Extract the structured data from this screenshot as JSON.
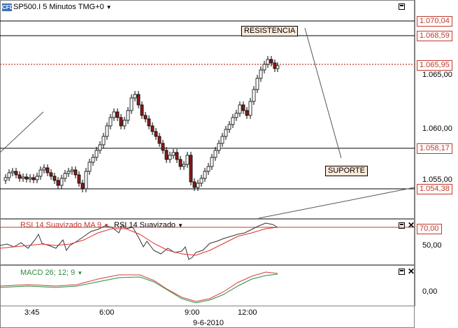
{
  "main": {
    "title": "SP500.I 5 Minutos TMG+0",
    "logo": "CFD",
    "price_labels": [
      "1.070,04",
      "1.068,59",
      "1.065,95",
      "1.058,17",
      "1.054,38"
    ],
    "ticks": [
      "1.065,00",
      "1.060,00",
      "1.055,00"
    ],
    "notes": {
      "resistance": "RESISTENCIA",
      "support": "SUPORTE"
    }
  },
  "rsi": {
    "title1": "RSI 14 Suavizado MA 9",
    "title2": "RSI 14 Suavizado",
    "level_label": "70,00",
    "tick": "50,00",
    "close": "✕"
  },
  "macd": {
    "title": "MACD 26; 12; 9",
    "tick": "0,00",
    "close": "✕"
  },
  "xaxis": {
    "ticks": [
      "3:45",
      "6:00",
      "9:00",
      "12:00"
    ],
    "date": "9-6-2010"
  },
  "colors": {
    "bull": "#ffffff",
    "bear": "#8b1a1a",
    "candle_outline": "#000000",
    "resistance": "#c0392b",
    "rsi_line": "#e03030",
    "macd_green": "#2e8b3d",
    "macd_red": "#d04040"
  },
  "icons": {
    "dropdown": "chevron-down-icon",
    "window": "window-icon",
    "close": "close-icon"
  }
}
